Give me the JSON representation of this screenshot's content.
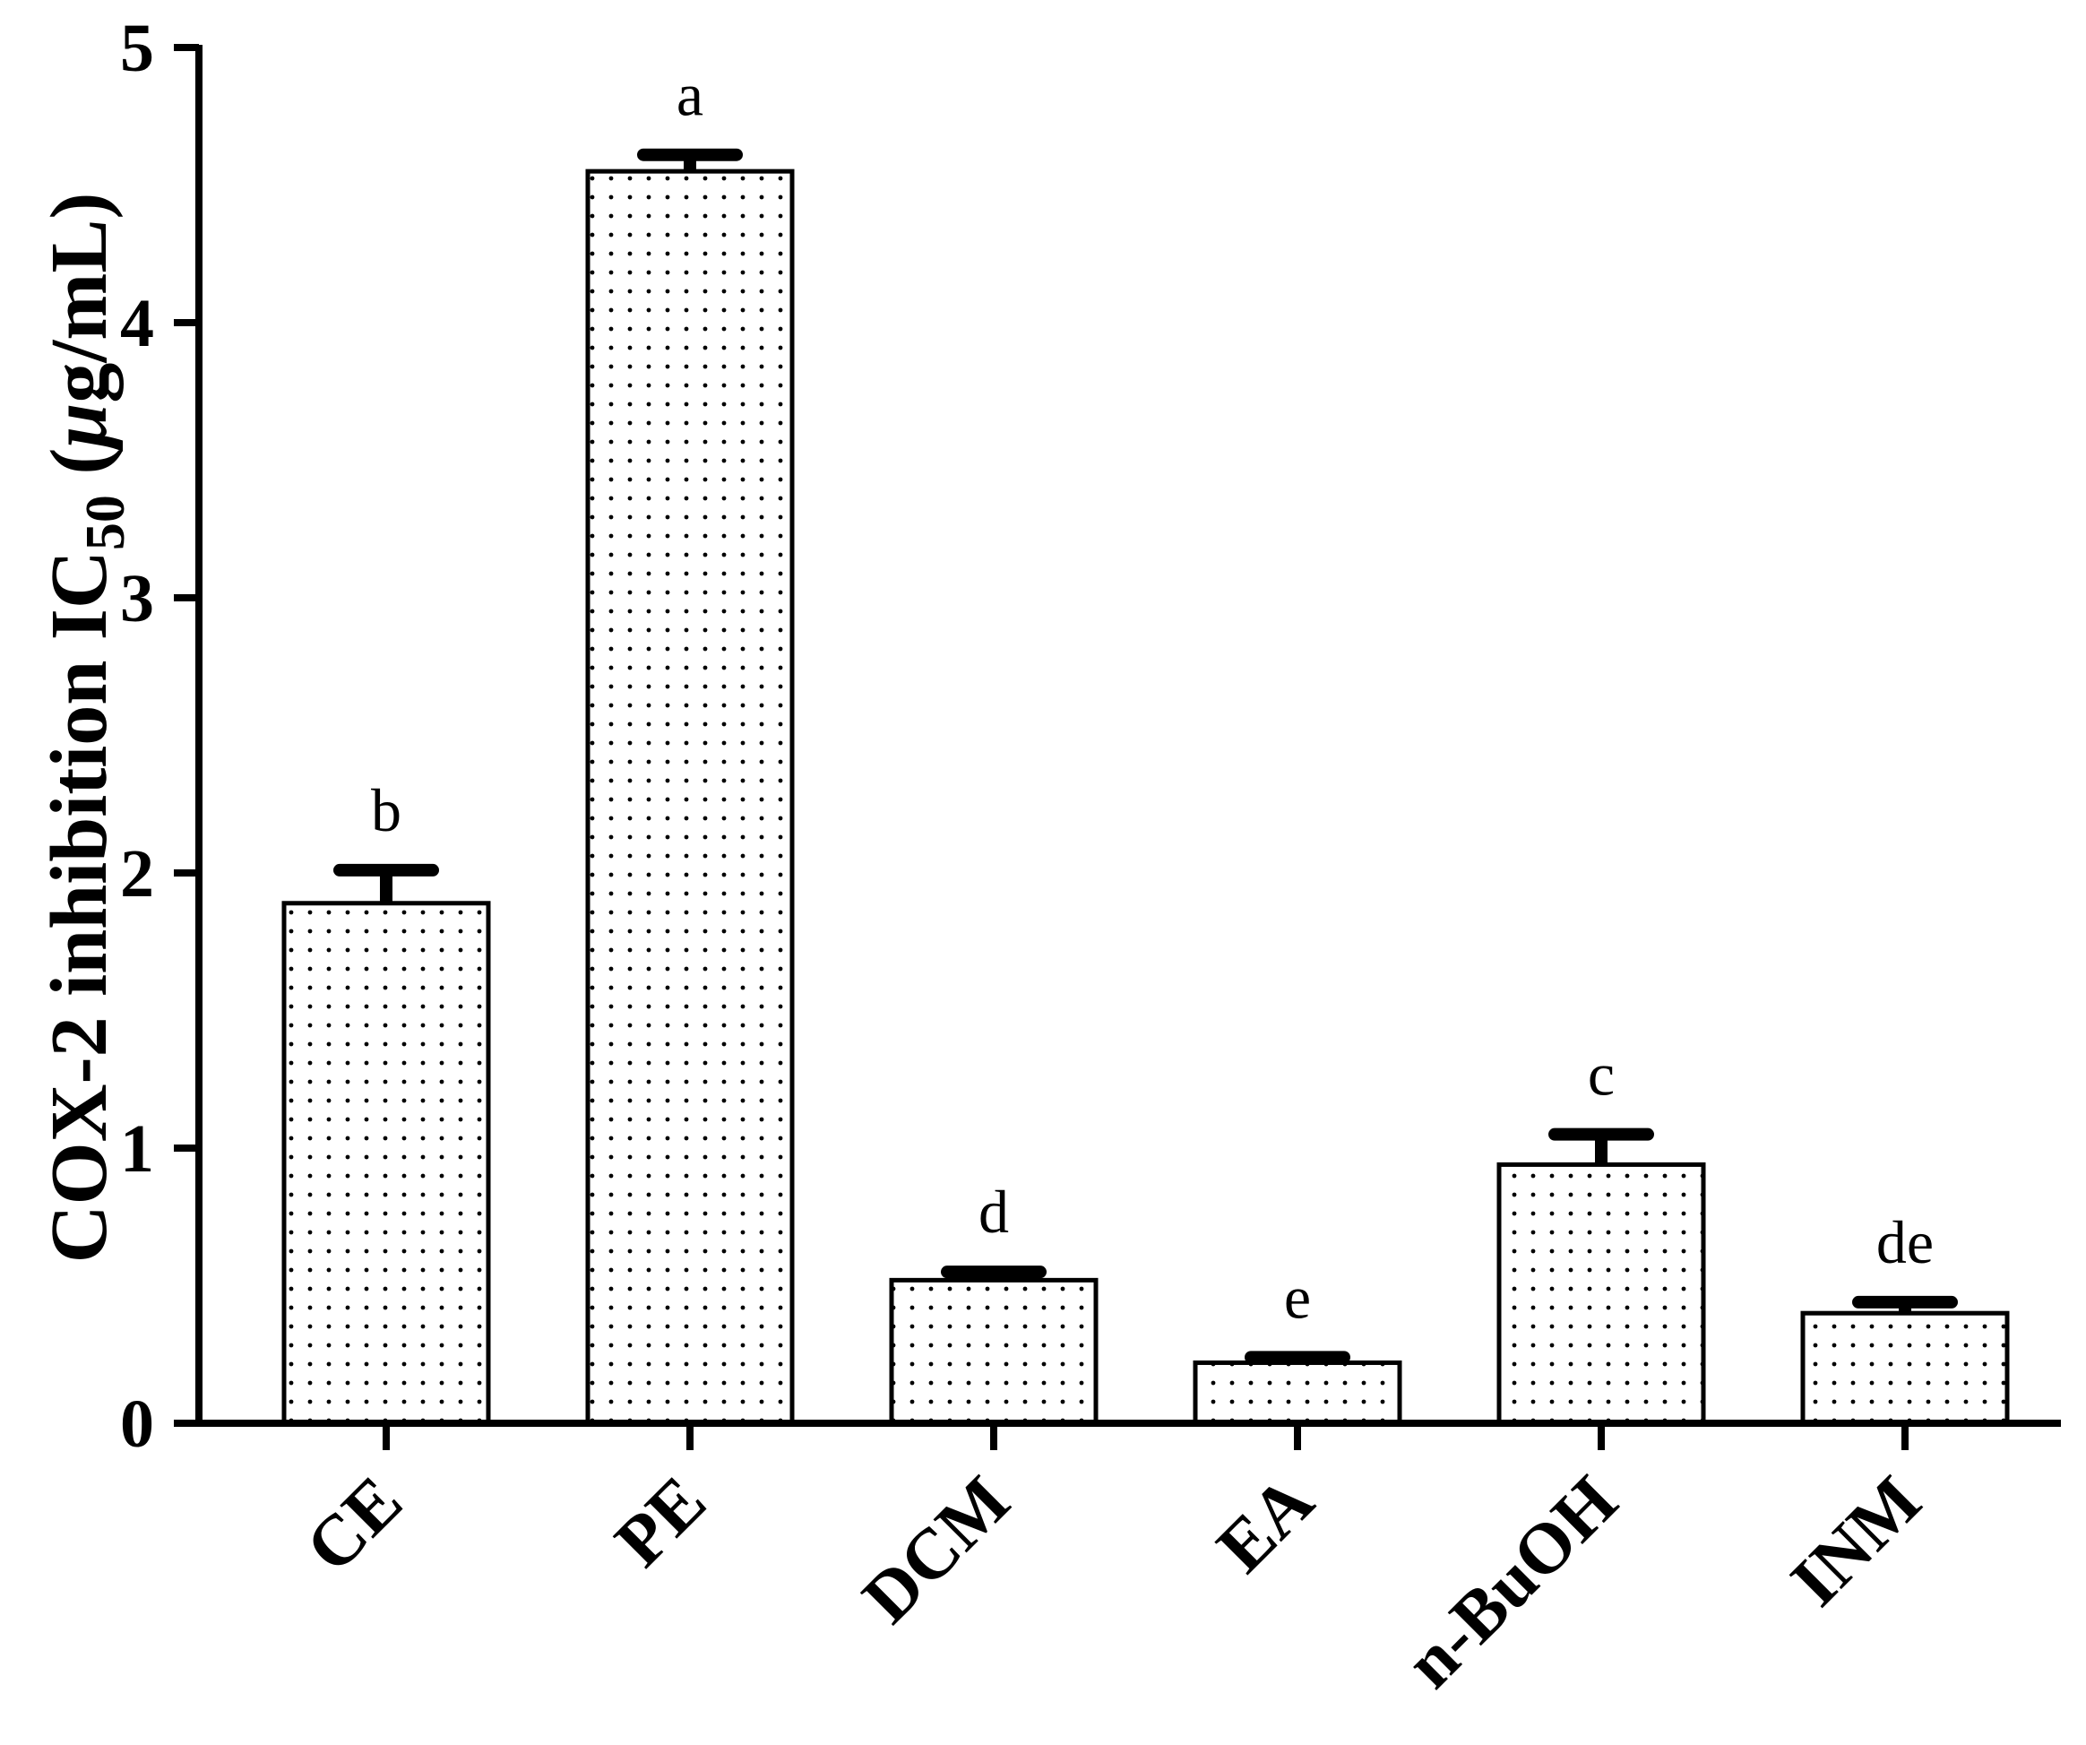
{
  "chart_data": {
    "type": "bar",
    "categories": [
      "CE",
      "PE",
      "DCM",
      "EA",
      "n-BuOH",
      "INM"
    ],
    "values": [
      1.89,
      4.55,
      0.52,
      0.22,
      0.94,
      0.4
    ],
    "errors": [
      0.12,
      0.06,
      0.03,
      0.02,
      0.11,
      0.04
    ],
    "significance_letters": [
      "b",
      "a",
      "d",
      "e",
      "c",
      "de"
    ],
    "title": "",
    "xlabel": "",
    "ylabel": {
      "main": "COX-2 inhibition IC",
      "subscript": "50",
      "unit_open": " (",
      "unit_mu": "μ",
      "unit_rest": "g/mL)"
    },
    "ylim": [
      0,
      5
    ],
    "yticks": [
      "0",
      "1",
      "2",
      "3",
      "4",
      "5"
    ],
    "grid": false,
    "legend": "none",
    "bar_fill": "dotted white",
    "colors": {
      "axis": "#000000",
      "bar_outline": "#000000",
      "bar_dots": "#000000",
      "background": "#ffffff"
    }
  }
}
